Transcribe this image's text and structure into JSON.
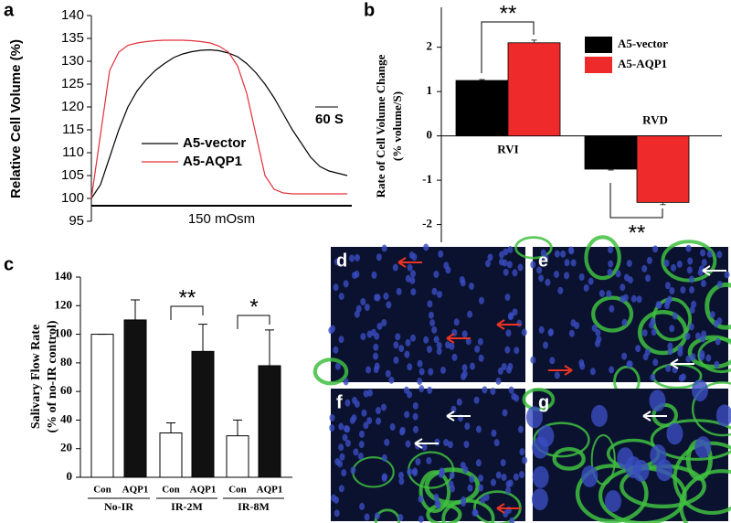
{
  "chart_data": [
    {
      "type": "line",
      "panel": "a",
      "ylabel": "Relative Cell Volume (%)",
      "xlabel": "150 mOsm",
      "x": [
        0,
        24,
        48,
        72,
        96,
        120,
        144,
        168,
        192,
        216,
        240,
        264,
        288,
        312,
        336,
        360,
        384,
        408,
        432,
        456,
        480,
        504,
        528,
        552,
        576,
        600,
        624,
        648,
        672
      ],
      "xlim": [
        0,
        684
      ],
      "ylim": [
        95,
        140
      ],
      "yticks": [
        95,
        100,
        105,
        110,
        115,
        120,
        125,
        130,
        135,
        140
      ],
      "scale_bar": {
        "value": 60,
        "label": "60 S"
      },
      "series": [
        {
          "name": "A5-vector",
          "color": "#000000",
          "values": [
            100,
            103,
            109,
            115,
            120,
            123.5,
            126,
            128,
            129.5,
            130.8,
            131.6,
            132.1,
            132.4,
            132.5,
            132.3,
            131.8,
            131,
            129.5,
            127.5,
            125,
            122,
            118.5,
            115,
            112,
            109,
            107,
            106,
            105.5,
            105
          ]
        },
        {
          "name": "A5-AQP1",
          "color": "#e0303a",
          "values": [
            100,
            114,
            128,
            132,
            133.5,
            134,
            134.3,
            134.5,
            134.6,
            134.6,
            134.6,
            134.5,
            134.3,
            134,
            133.3,
            132,
            129,
            123,
            114,
            105,
            102,
            101.2,
            101,
            101,
            101,
            101,
            101,
            101,
            101
          ]
        }
      ]
    },
    {
      "type": "bar",
      "panel": "b",
      "ylabel": [
        "Rate of  Cell Volume Change",
        "(% volume/S)"
      ],
      "categories": [
        "RVI",
        "RVD"
      ],
      "ylim": [
        -2.4,
        2.9
      ],
      "yticks": [
        -2,
        -1,
        0,
        1,
        2
      ],
      "annotations": [
        "**",
        "**"
      ],
      "series": [
        {
          "name": "A5-vector",
          "color": "#000000",
          "values": [
            1.25,
            -0.75
          ],
          "errors": [
            0.02,
            0.02
          ]
        },
        {
          "name": "A5-AQP1",
          "color": "#ee2a2a",
          "values": [
            2.1,
            -1.5
          ],
          "errors": [
            0.06,
            0.05
          ]
        }
      ]
    },
    {
      "type": "bar",
      "panel": "c",
      "ylabel": [
        "Salivary Flow Rate",
        "(% of no-IR control)"
      ],
      "categories": [
        "Con",
        "AQP1",
        "Con",
        "AQP1",
        "Con",
        "AQP1"
      ],
      "groups": [
        "No-IR",
        "IR-2M",
        "IR-8M"
      ],
      "values": [
        100,
        110,
        31,
        88,
        29,
        78
      ],
      "errors": [
        0,
        14,
        7,
        19,
        11,
        25
      ],
      "colors": [
        "#ffffff",
        "#111111",
        "#ffffff",
        "#111111",
        "#ffffff",
        "#111111"
      ],
      "ylim": [
        0,
        140
      ],
      "yticks": [
        0,
        20,
        40,
        60,
        80,
        100,
        120,
        140
      ],
      "annotations": [
        "**",
        "*"
      ]
    }
  ],
  "images": [
    {
      "label": "d"
    },
    {
      "label": "e"
    },
    {
      "label": "f"
    },
    {
      "label": "g"
    }
  ]
}
